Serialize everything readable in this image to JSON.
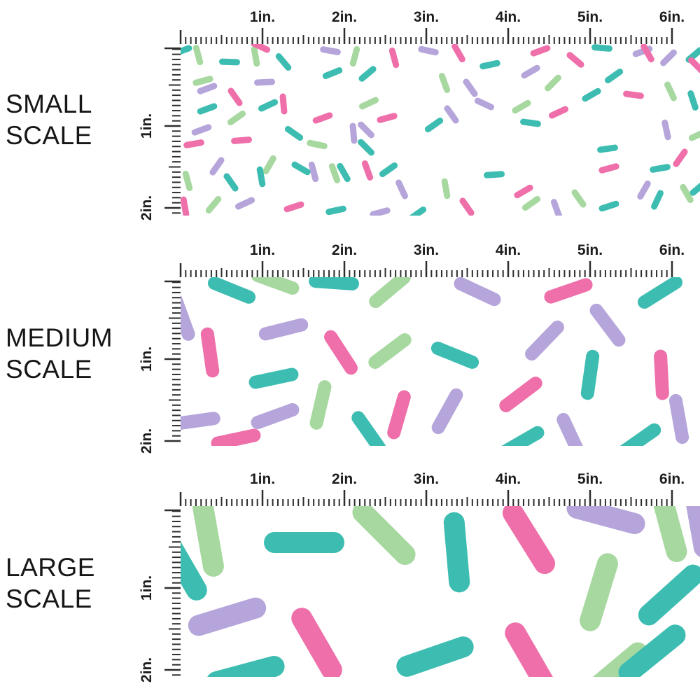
{
  "colors": {
    "pink": "#ee6fa9",
    "teal": "#3dbdb1",
    "lavender": "#b5a5da",
    "green": "#a7d8a0",
    "ruler": "#2d2d2d",
    "label_text": "#161616"
  },
  "ruler": {
    "unit": "in.",
    "h_labels": [
      "1in.",
      "2in.",
      "3in.",
      "4in.",
      "5in.",
      "6in."
    ],
    "v_labels": [
      "1in.",
      "2in."
    ]
  },
  "panels": [
    {
      "name": "small-scale",
      "label_line1": "SMALL",
      "label_line2": "SCALE",
      "sprinkle_length": 30,
      "sprinkle_thickness": 9,
      "sprinkles": [
        [
          25,
          15,
          75,
          "g"
        ],
        [
          70,
          25,
          2,
          "t"
        ],
        [
          107,
          17,
          80,
          "g"
        ],
        [
          114,
          3,
          25,
          "p"
        ],
        [
          147,
          25,
          50,
          "t"
        ],
        [
          214,
          9,
          10,
          "l"
        ],
        [
          32,
          52,
          -15,
          "g"
        ],
        [
          38,
          63,
          -20,
          "l"
        ],
        [
          120,
          54,
          -3,
          "l"
        ],
        [
          78,
          75,
          55,
          "p"
        ],
        [
          38,
          92,
          -20,
          "t"
        ],
        [
          125,
          87,
          -25,
          "t"
        ],
        [
          80,
          105,
          -35,
          "g"
        ],
        [
          147,
          85,
          85,
          "p"
        ],
        [
          30,
          122,
          -20,
          "l"
        ],
        [
          19,
          142,
          -10,
          "p"
        ],
        [
          87,
          137,
          -5,
          "p"
        ],
        [
          162,
          127,
          35,
          "t"
        ],
        [
          52,
          174,
          -55,
          "l"
        ],
        [
          72,
          197,
          55,
          "t"
        ],
        [
          127,
          172,
          -60,
          "g"
        ],
        [
          115,
          189,
          80,
          "t"
        ],
        [
          172,
          177,
          30,
          "t"
        ],
        [
          190,
          182,
          75,
          "l"
        ],
        [
          220,
          184,
          70,
          "g"
        ],
        [
          10,
          195,
          75,
          "g"
        ],
        [
          6,
          232,
          80,
          "p"
        ],
        [
          47,
          229,
          -50,
          "g"
        ],
        [
          92,
          227,
          -25,
          "l"
        ],
        [
          162,
          232,
          -18,
          "p"
        ],
        [
          222,
          237,
          -12,
          "t"
        ],
        [
          2,
          9,
          -20,
          "t"
        ],
        [
          249,
          17,
          -75,
          "g"
        ],
        [
          305,
          19,
          75,
          "p"
        ],
        [
          267,
          42,
          -40,
          "t"
        ],
        [
          397,
          12,
          60,
          "p"
        ],
        [
          442,
          29,
          -12,
          "t"
        ],
        [
          354,
          9,
          12,
          "l"
        ],
        [
          377,
          55,
          70,
          "g"
        ],
        [
          414,
          62,
          55,
          "l"
        ],
        [
          500,
          39,
          -30,
          "l"
        ],
        [
          514,
          9,
          -20,
          "p"
        ],
        [
          564,
          22,
          40,
          "p"
        ],
        [
          619,
          45,
          -35,
          "t"
        ],
        [
          602,
          5,
          5,
          "t"
        ],
        [
          660,
          10,
          -20,
          "l"
        ],
        [
          667,
          12,
          60,
          "p"
        ],
        [
          697,
          19,
          -45,
          "l"
        ],
        [
          734,
          15,
          -40,
          "t"
        ],
        [
          737,
          30,
          45,
          "p"
        ],
        [
          532,
          55,
          -45,
          "g"
        ],
        [
          587,
          72,
          -30,
          "t"
        ],
        [
          647,
          72,
          8,
          "p"
        ],
        [
          700,
          67,
          65,
          "g"
        ],
        [
          732,
          80,
          72,
          "t"
        ],
        [
          434,
          85,
          25,
          "l"
        ],
        [
          487,
          89,
          -30,
          "g"
        ],
        [
          540,
          97,
          -25,
          "p"
        ],
        [
          500,
          112,
          8,
          "t"
        ],
        [
          387,
          100,
          55,
          "l"
        ],
        [
          362,
          115,
          -35,
          "t"
        ],
        [
          295,
          105,
          -15,
          "p"
        ],
        [
          265,
          122,
          45,
          "l"
        ],
        [
          269,
          84,
          -25,
          "g"
        ],
        [
          694,
          122,
          78,
          "l"
        ],
        [
          740,
          129,
          -25,
          "g"
        ],
        [
          714,
          162,
          -55,
          "p"
        ],
        [
          610,
          149,
          -8,
          "t"
        ],
        [
          612,
          177,
          -15,
          "p"
        ],
        [
          685,
          177,
          -10,
          "t"
        ],
        [
          267,
          180,
          70,
          "p"
        ],
        [
          297,
          179,
          -35,
          "t"
        ],
        [
          316,
          207,
          65,
          "l"
        ],
        [
          338,
          242,
          -35,
          "t"
        ],
        [
          379,
          206,
          80,
          "g"
        ],
        [
          409,
          232,
          55,
          "p"
        ],
        [
          448,
          186,
          -4,
          "t"
        ],
        [
          490,
          210,
          -30,
          "p"
        ],
        [
          501,
          227,
          -35,
          "g"
        ],
        [
          537,
          235,
          70,
          "l"
        ],
        [
          569,
          220,
          55,
          "g"
        ],
        [
          612,
          231,
          -18,
          "t"
        ],
        [
          662,
          208,
          -60,
          "l"
        ],
        [
          681,
          222,
          -65,
          "t"
        ],
        [
          723,
          213,
          60,
          "g"
        ],
        [
          740,
          205,
          -40,
          "t"
        ],
        [
          285,
          240,
          -15,
          "l"
        ],
        [
          265,
          147,
          45,
          "t"
        ],
        [
          247,
          127,
          85,
          "l"
        ],
        [
          217,
          41,
          -22,
          "t"
        ],
        [
          203,
          105,
          -20,
          "p"
        ],
        [
          195,
          143,
          12,
          "g"
        ],
        [
          233,
          183,
          60,
          "t"
        ]
      ]
    },
    {
      "name": "medium-scale",
      "label_line1": "MEDIUM",
      "label_line2": "SCALE",
      "sprinkle_length": 72,
      "sprinkle_thickness": 19,
      "sprinkles": [
        [
          73,
          18,
          22,
          "t"
        ],
        [
          135,
          6,
          20,
          "g"
        ],
        [
          219,
          7,
          4,
          "t"
        ],
        [
          2,
          56,
          70,
          "l"
        ],
        [
          42,
          107,
          82,
          "p"
        ],
        [
          147,
          74,
          -14,
          "l"
        ],
        [
          229,
          107,
          57,
          "p"
        ],
        [
          133,
          144,
          -12,
          "t"
        ],
        [
          200,
          182,
          -77,
          "g"
        ],
        [
          135,
          198,
          -20,
          "l"
        ],
        [
          21,
          205,
          -8,
          "l"
        ],
        [
          79,
          231,
          -12,
          "p"
        ],
        [
          299,
          17,
          -40,
          "g"
        ],
        [
          424,
          20,
          25,
          "l"
        ],
        [
          554,
          19,
          -19,
          "p"
        ],
        [
          685,
          21,
          -32,
          "t"
        ],
        [
          610,
          68,
          53,
          "l"
        ],
        [
          520,
          90,
          -46,
          "l"
        ],
        [
          299,
          105,
          -37,
          "g"
        ],
        [
          392,
          111,
          22,
          "t"
        ],
        [
          687,
          139,
          87,
          "p"
        ],
        [
          585,
          139,
          -82,
          "t"
        ],
        [
          486,
          167,
          -37,
          "p"
        ],
        [
          312,
          196,
          -74,
          "p"
        ],
        [
          381,
          191,
          -61,
          "l"
        ],
        [
          487,
          235,
          -30,
          "t"
        ],
        [
          269,
          222,
          55,
          "t"
        ],
        [
          558,
          227,
          65,
          "l"
        ],
        [
          655,
          233,
          -35,
          "t"
        ],
        [
          712,
          202,
          80,
          "l"
        ]
      ]
    },
    {
      "name": "large-scale",
      "label_line1": "LARGE",
      "label_line2": "SCALE",
      "sprinkle_length": 115,
      "sprinkle_thickness": 30,
      "sprinkles": [
        [
          39,
          44,
          80,
          "g"
        ],
        [
          176,
          52,
          0,
          "t"
        ],
        [
          66,
          158,
          -17,
          "l"
        ],
        [
          194,
          197,
          60,
          "p"
        ],
        [
          92,
          240,
          -15,
          "t"
        ],
        [
          290,
          39,
          45,
          "g"
        ],
        [
          394,
          66,
          85,
          "t"
        ],
        [
          497,
          46,
          58,
          "p"
        ],
        [
          607,
          14,
          15,
          "l"
        ],
        [
          697,
          24,
          75,
          "g"
        ],
        [
          597,
          123,
          -73,
          "g"
        ],
        [
          700,
          127,
          -42,
          "t"
        ],
        [
          363,
          215,
          -19,
          "t"
        ],
        [
          499,
          218,
          60,
          "p"
        ],
        [
          620,
          237,
          -40,
          "g"
        ],
        [
          673,
          211,
          -39,
          "t"
        ],
        [
          740,
          17,
          80,
          "l"
        ],
        [
          1,
          83,
          60,
          "t"
        ]
      ]
    }
  ]
}
